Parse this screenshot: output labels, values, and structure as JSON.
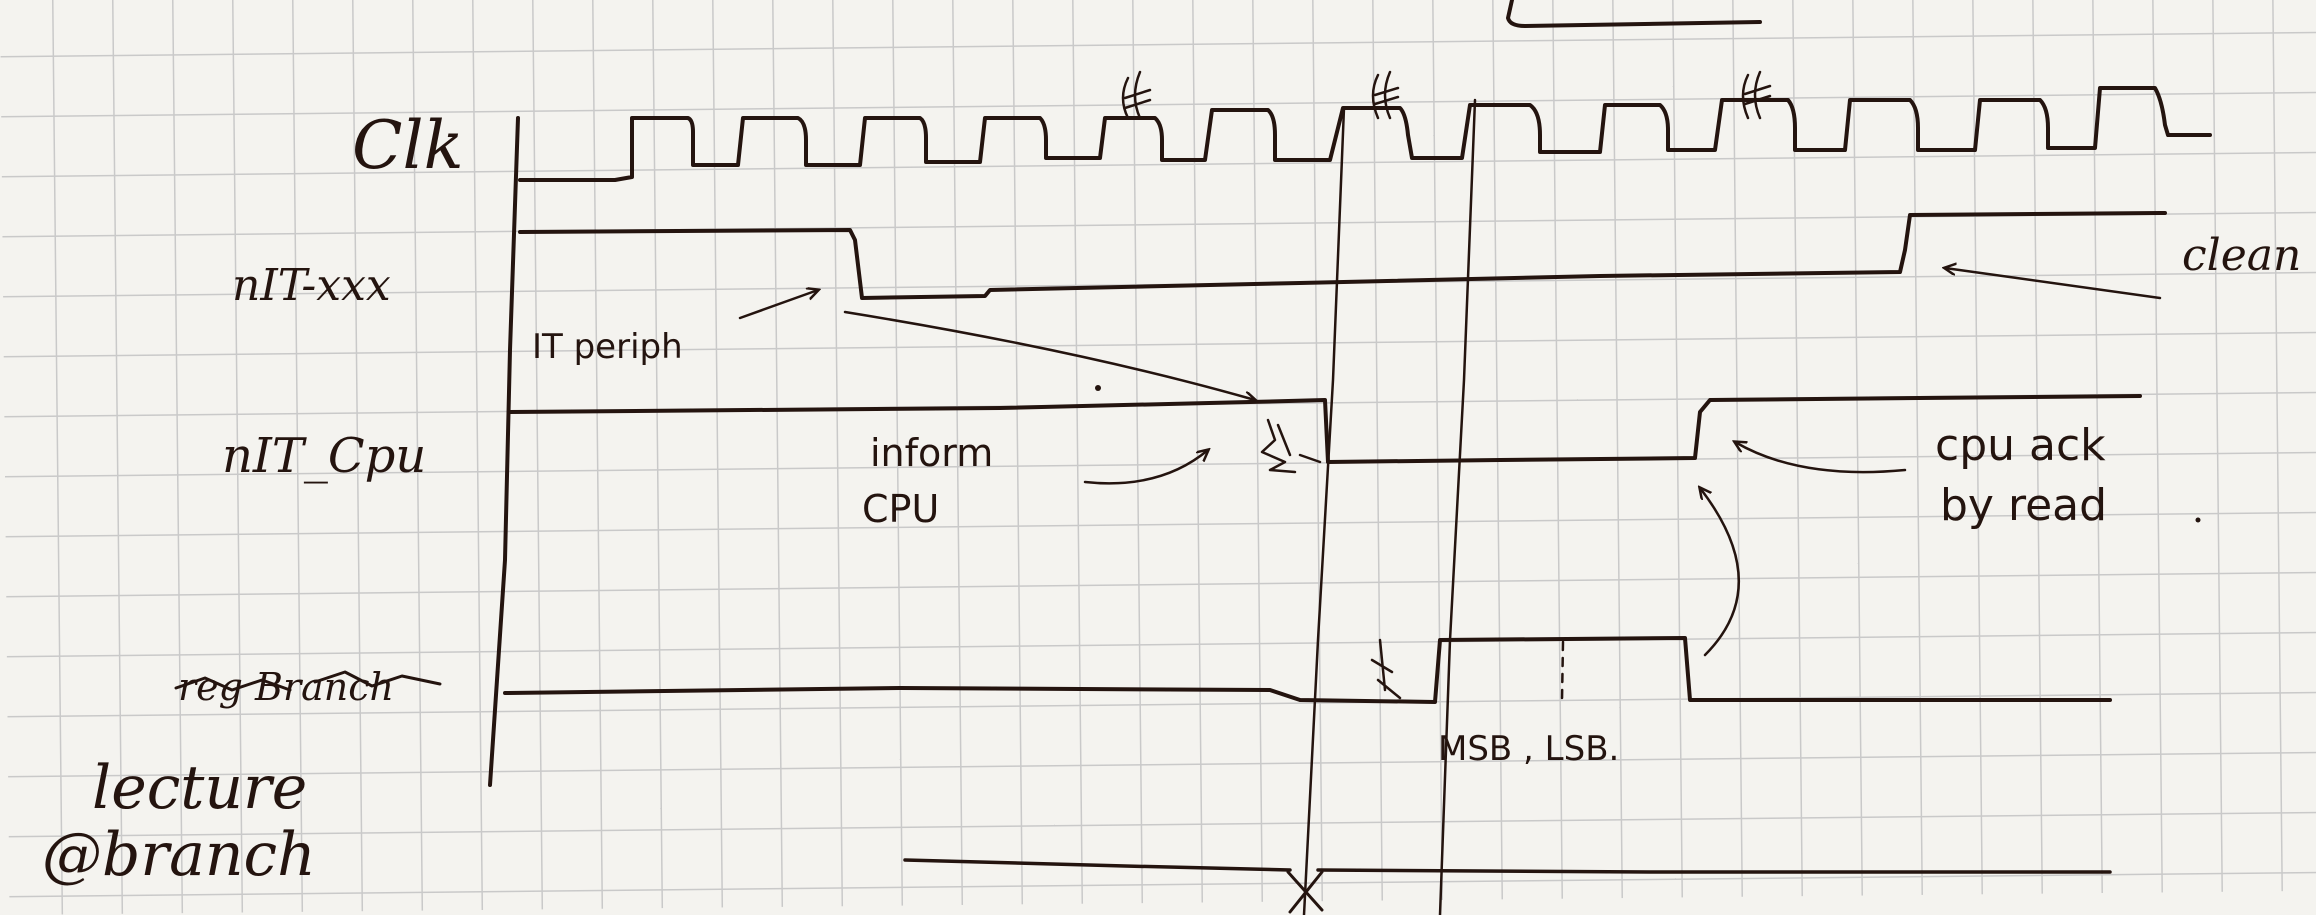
{
  "signals": {
    "clk": "Clk",
    "it_xxx": "nIT-xxx",
    "it_cpu": "nIT_Cpu",
    "reg_branch": "reg Branch"
  },
  "annotations": {
    "it_periph": "IT periph",
    "inform_line1": "inform",
    "inform_line2": "CPU",
    "clean": "clean",
    "cpu_ack_line1": "cpu ack",
    "cpu_ack_line2": "by read",
    "msb_lsb": "MSB , LSB.",
    "lecture_line1": "lecture",
    "lecture_line2": "@branch"
  },
  "colors": {
    "ink": "#24140f",
    "grid": "#c9c9c9",
    "paper": "#f4f3ef"
  }
}
